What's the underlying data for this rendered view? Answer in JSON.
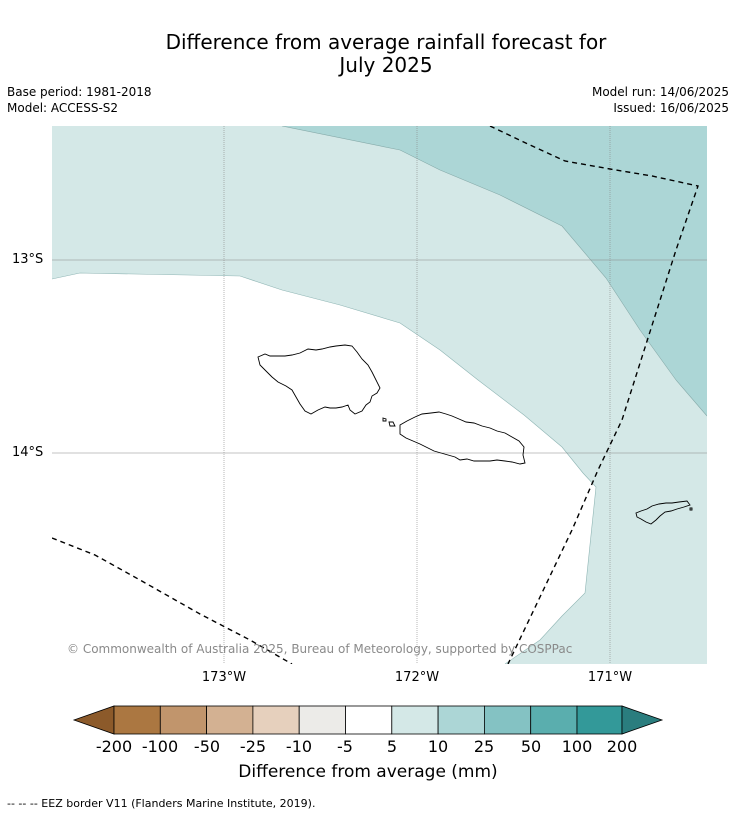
{
  "title": {
    "line1": "Difference from average rainfall forecast for",
    "line2": "July 2025"
  },
  "meta": {
    "base_period": "Base period: 1981-2018",
    "model": "Model: ACCESS-S2",
    "model_run": "Model run: 14/06/2025",
    "issued": "Issued: 16/06/2025"
  },
  "map": {
    "lat_labels": [
      "13°S",
      "14°S"
    ],
    "lon_labels": [
      "173°W",
      "172°W",
      "171°W"
    ],
    "copyright": "© Commonwealth of Australia 2025, Bureau of Meteorology, supported by COSPPac",
    "categories_shown": [
      "5 to 10 mm",
      "10 to 25 mm"
    ]
  },
  "colorbar": {
    "title": "Difference from average (mm)",
    "ticks": [
      "-200",
      "-100",
      "-50",
      "-25",
      "-10",
      "-5",
      "5",
      "10",
      "25",
      "50",
      "100",
      "200"
    ],
    "colors": [
      "#8c5a2a",
      "#ab7741",
      "#c1956c",
      "#d3b192",
      "#e6d0bd",
      "#ecebe8",
      "#ffffff",
      "#d4e8e7",
      "#acd6d6",
      "#84c2c3",
      "#5aaeae",
      "#339999",
      "#2a7d7e"
    ]
  },
  "footer": {
    "legend": "--  --  -- EEZ border V11 (Flanders Marine Institute, 2019)."
  }
}
